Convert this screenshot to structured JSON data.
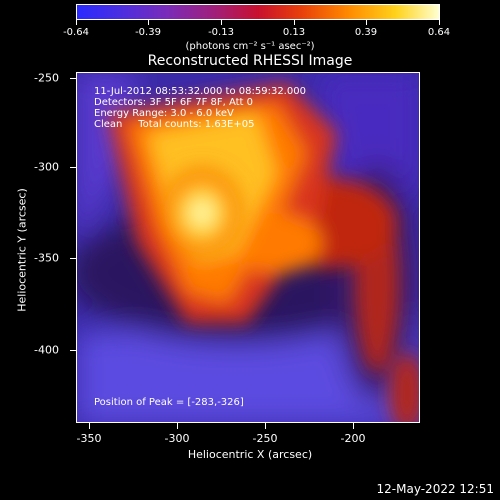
{
  "colorbar": {
    "ticks": [
      "-0.64",
      "-0.39",
      "-0.13",
      "0.13",
      "0.39",
      "0.64"
    ],
    "units": "(photons cm⁻² s⁻¹ asec⁻²)"
  },
  "title": "Reconstructed RHESSI Image",
  "info": {
    "line1": "11-Jul-2012 08:53:32.000 to 08:59:32.000",
    "line2": "Detectors: 3F 5F 6F 7F 8F, Att 0",
    "line3": "Energy Range: 3.0 - 6.0 keV",
    "line4": "Clean     Total counts: 1.63E+05",
    "peak": "Position of Peak = [-283,-326]"
  },
  "axes": {
    "xlabel": "Heliocentric X (arcsec)",
    "ylabel": "Heliocentric Y (arcsec)",
    "xticks": [
      "-350",
      "-300",
      "-250",
      "-200"
    ],
    "yticks": [
      "-250",
      "-300",
      "-350",
      "-400"
    ]
  },
  "date": "12-May-2022 12:51"
}
